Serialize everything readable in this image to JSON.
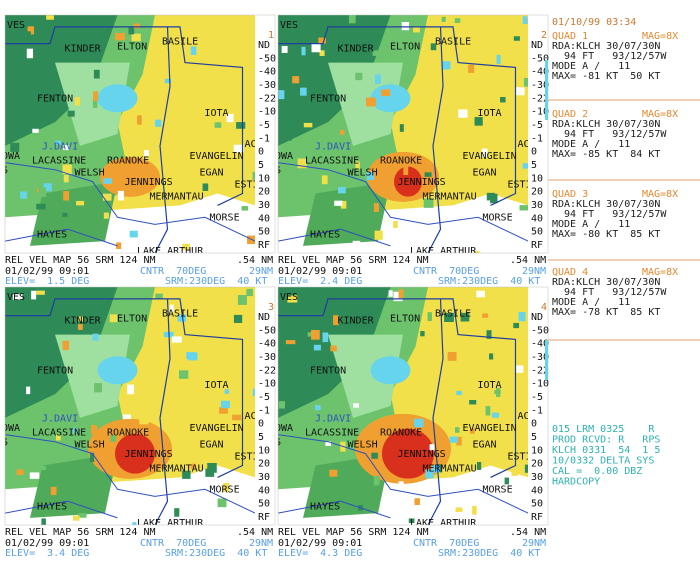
{
  "header": {
    "date_time": "01/10/99 03:34"
  },
  "towns": [
    "VES",
    "KINDER",
    "ELTON",
    "BASILE",
    "FENTON",
    "IOTA",
    "J.DAVI",
    "AC",
    "OWA",
    "LACASSINE",
    "ROANOKE",
    "EVANGELIN",
    "$",
    "WELSH",
    "EGAN",
    "JENNINGS",
    "ESTI",
    "MERMANTAU",
    "MORSE",
    "HAYES",
    "LAKE ARTHUR"
  ],
  "color_scale": [
    "ND",
    "-50",
    "-40",
    "-30",
    "-22",
    "-10",
    "-5",
    "-1",
    "0",
    "5",
    "10",
    "20",
    "30",
    "40",
    "50",
    "RF"
  ],
  "panels": [
    {
      "number": "1",
      "line1": "REL VEL MAP 56 SRM 124 NM",
      "range": ".54 NM",
      "date": "01/02/99 09:01",
      "center": "CNTR  70DEG",
      "center_range": "29NM",
      "elev": "ELEV=  1.5 DEG",
      "srm": "SRM:230DEG  40 KT"
    },
    {
      "number": "2",
      "line1": "REL VEL MAP 56 SRM 124 NM",
      "range": ".54 NM",
      "date": "01/02/99 09:01",
      "center": "CNTR  70DEG",
      "center_range": "29NM",
      "elev": "ELEV=  2.4 DEG",
      "srm": "SRM:230DEG  40 KT"
    },
    {
      "number": "3",
      "line1": "REL VEL MAP 56 SRM 124 NM",
      "range": ".54 NM",
      "date": "01/02/99 09:01",
      "center": "CNTR  70DEG",
      "center_range": "29NM",
      "elev": "ELEV=  3.4 DEG",
      "srm": "SRM:230DEG  40 KT"
    },
    {
      "number": "4",
      "line1": "REL VEL MAP 56 SRM 124 NM",
      "range": ".54 NM",
      "date": "01/02/99 09:01",
      "center": "CNTR  70DEG",
      "center_range": "29NM",
      "elev": "ELEV=  4.3 DEG",
      "srm": "SRM:230DEG  40 KT"
    }
  ],
  "quads": [
    {
      "title": "QUAD 1",
      "mag": "MAG=8X",
      "rda": "RDA:KLCH 30/07/30N",
      "ft": "  94 FT   93/12/57W",
      "mode": "MODE A /   11",
      "max": "MAX= -81 KT  50 KT"
    },
    {
      "title": "QUAD 2",
      "mag": "MAG=8X",
      "rda": "RDA:KLCH 30/07/30N",
      "ft": "  94 FT   93/12/57W",
      "mode": "MODE A /   11",
      "max": "MAX= -85 KT  84 KT"
    },
    {
      "title": "QUAD 3",
      "mag": "MAG=8X",
      "rda": "RDA:KLCH 30/07/30N",
      "ft": "  94 FT   93/12/57W",
      "mode": "MODE A /   11",
      "max": "MAX= -80 KT  85 KT"
    },
    {
      "title": "QUAD 4",
      "mag": "MAG=8X",
      "rda": "RDA:KLCH 30/07/30N",
      "ft": "  94 FT   93/12/57W",
      "mode": "MODE A /   11",
      "max": "MAX= -78 KT  85 KT"
    }
  ],
  "status": [
    "015 LRM 0325    R",
    "PROD RCVD: R   RPS",
    "KLCH 0331  54  1 5",
    "10/0332 DELTA SYS",
    "CAL =  0.00 DBZ",
    "HARDCOPY"
  ]
}
